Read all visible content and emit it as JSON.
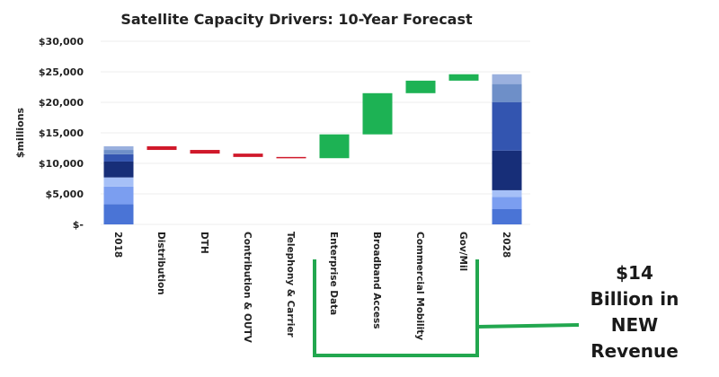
{
  "chart_data": {
    "type": "bar",
    "subtype": "waterfall",
    "title": "Satellite Capacity Drivers: 10-Year Forecast",
    "xlabel": "",
    "ylabel": "$millions",
    "ylim": [
      0,
      30000
    ],
    "yticks": [
      0,
      5000,
      10000,
      15000,
      20000,
      25000,
      30000
    ],
    "ytick_labels": [
      "$-",
      "$5,000",
      "$10,000",
      "$15,000",
      "$20,000",
      "$25,000",
      "$30,000"
    ],
    "grid": true,
    "categories": [
      "2018",
      "Distribution",
      "DTH",
      "Contribution & OUTV",
      "Telephony & Carrier",
      "Enterprise Data",
      "Broadband Access",
      "Commercial Mobility",
      "Gov/Mil",
      "2028"
    ],
    "steps": [
      {
        "category": "2018",
        "kind": "total",
        "value": 12800
      },
      {
        "category": "Distribution",
        "kind": "decrease",
        "value": -600
      },
      {
        "category": "DTH",
        "kind": "decrease",
        "value": -600
      },
      {
        "category": "Contribution & OUTV",
        "kind": "decrease",
        "value": -550
      },
      {
        "category": "Telephony & Carrier",
        "kind": "decrease",
        "value": -200
      },
      {
        "category": "Enterprise Data",
        "kind": "increase",
        "value": 3900
      },
      {
        "category": "Broadband Access",
        "kind": "increase",
        "value": 6750
      },
      {
        "category": "Commercial Mobility",
        "kind": "increase",
        "value": 2050
      },
      {
        "category": "Gov/Mil",
        "kind": "increase",
        "value": 1050
      },
      {
        "category": "2028",
        "kind": "total",
        "value": 24600
      }
    ],
    "stacked_totals": {
      "2018": [
        3300,
        2900,
        1500,
        2600,
        1200,
        700,
        600
      ],
      "2028": [
        2500,
        2000,
        1100,
        6500,
        7900,
        3000,
        1600
      ]
    },
    "colors": {
      "decrease": "#d0192b",
      "increase": "#1db254",
      "stack": [
        "#4a74d6",
        "#7b9ef0",
        "#a6c0f7",
        "#172e78",
        "#3355b0",
        "#6e8fc8",
        "#9ab0de"
      ],
      "bracket": "#22a74f"
    },
    "annotation": {
      "lines": [
        "$14",
        "Billion in",
        "NEW",
        "Revenue"
      ],
      "spans": [
        "Enterprise Data",
        "Gov/Mil"
      ]
    }
  }
}
